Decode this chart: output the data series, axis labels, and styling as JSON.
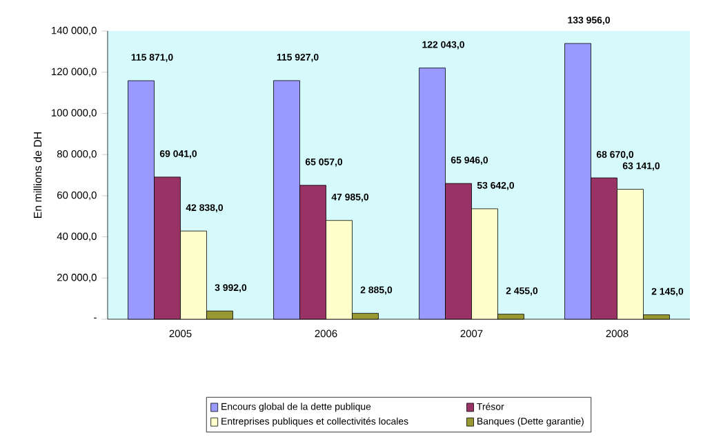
{
  "chart_data": {
    "type": "bar",
    "ylabel": "En millions de DH",
    "categories": [
      "2005",
      "2006",
      "2007",
      "2008"
    ],
    "series": [
      {
        "name": "Encours global de la dette publique",
        "color": "#9999ff",
        "values": [
          115871,
          115927,
          122043,
          133956
        ],
        "value_labels": [
          "115 871,0",
          "115 927,0",
          "122 043,0",
          "133 956,0"
        ]
      },
      {
        "name": "Trésor",
        "color": "#993366",
        "values": [
          69041,
          65057,
          65946,
          68670
        ],
        "value_labels": [
          "69 041,0",
          "65 057,0",
          "65 946,0",
          "68 670,0"
        ]
      },
      {
        "name": "Entreprises publiques et collectivités locales",
        "color": "#ffffcc",
        "values": [
          42838,
          47985,
          53642,
          63141
        ],
        "value_labels": [
          "42 838,0",
          "47 985,0",
          "53 642,0",
          "63 141,0"
        ]
      },
      {
        "name": "Banques (Dette garantie)",
        "color": "#999933",
        "values": [
          3992,
          2885,
          2455,
          2145
        ],
        "value_labels": [
          "3 992,0",
          "2 885,0",
          "2 455,0",
          "2 145,0"
        ]
      }
    ],
    "ylim": [
      0,
      140000
    ],
    "yticks": [
      {
        "value": 0,
        "label": "-"
      },
      {
        "value": 20000,
        "label": "20 000,0"
      },
      {
        "value": 40000,
        "label": "40 000,0"
      },
      {
        "value": 60000,
        "label": "60 000,0"
      },
      {
        "value": 80000,
        "label": "80 000,0"
      },
      {
        "value": 100000,
        "label": "100 000,0"
      },
      {
        "value": 120000,
        "label": "120 000,0"
      },
      {
        "value": 140000,
        "label": "140 000,0"
      }
    ],
    "grid": false,
    "legend": "bottom"
  }
}
